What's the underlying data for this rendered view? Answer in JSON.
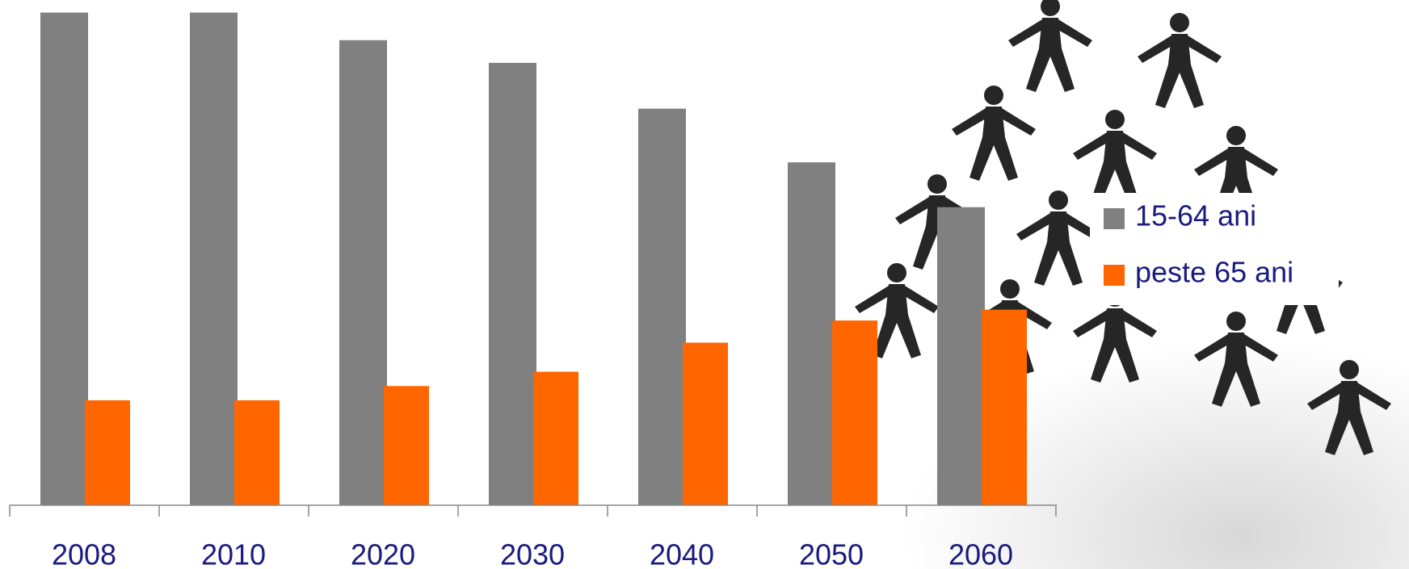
{
  "chart_data": {
    "type": "bar",
    "categories": [
      "2008",
      "2010",
      "2020",
      "2030",
      "2040",
      "2050",
      "2060"
    ],
    "series": [
      {
        "name": "15-64 ani",
        "color": "#808080",
        "values": [
          100,
          100,
          94.4,
          89.8,
          80.5,
          69.6,
          60.5
        ]
      },
      {
        "name": "peste 65 ani",
        "color": "#ff6600",
        "values": [
          21.3,
          21.3,
          24.2,
          27.1,
          33,
          37.5,
          39.7
        ]
      }
    ],
    "ylim": [
      0,
      100
    ]
  }
}
